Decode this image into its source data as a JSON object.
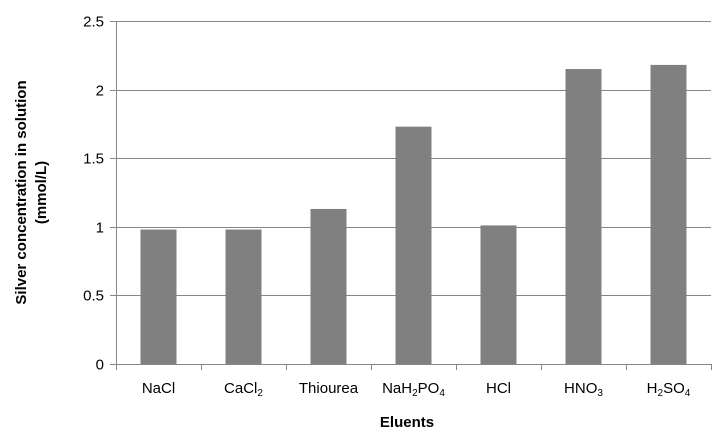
{
  "chart_data": {
    "type": "bar",
    "title": "",
    "xlabel": "Eluents",
    "ylabel_lines": [
      "Silver concentration in solution",
      "(mmol/L)"
    ],
    "categories": [
      {
        "label": [
          [
            "NaCl",
            false
          ]
        ]
      },
      {
        "label": [
          [
            "CaCl",
            false
          ],
          [
            "2",
            true
          ]
        ]
      },
      {
        "label": [
          [
            "Thiourea",
            false
          ]
        ]
      },
      {
        "label": [
          [
            "NaH",
            false
          ],
          [
            "2",
            true
          ],
          [
            "PO",
            false
          ],
          [
            "4",
            true
          ]
        ]
      },
      {
        "label": [
          [
            "HCl",
            false
          ]
        ]
      },
      {
        "label": [
          [
            "HNO",
            false
          ],
          [
            "3",
            true
          ]
        ]
      },
      {
        "label": [
          [
            "H",
            false
          ],
          [
            "2",
            true
          ],
          [
            "SO",
            false
          ],
          [
            "4",
            true
          ]
        ]
      }
    ],
    "category_names": [
      "NaCl",
      "CaCl2",
      "Thiourea",
      "NaH2PO4",
      "HCl",
      "HNO3",
      "H2SO4"
    ],
    "values": [
      0.98,
      0.98,
      1.13,
      1.73,
      1.01,
      2.15,
      2.18
    ],
    "yticks": [
      "0",
      "0.5",
      "1",
      "1.5",
      "2",
      "2.5"
    ],
    "ylim": [
      0,
      2.5
    ],
    "grid": true,
    "legend": "none",
    "bar_color": "#808080",
    "grid_color": "#868686"
  }
}
